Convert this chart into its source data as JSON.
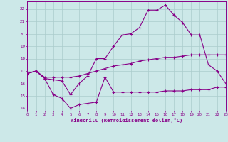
{
  "xlabel": "Windchill (Refroidissement éolien,°C)",
  "background_color": "#cce8e8",
  "grid_color": "#aacccc",
  "line_color": "#880088",
  "xlim": [
    0,
    23
  ],
  "ylim": [
    13.8,
    22.6
  ],
  "xticks": [
    0,
    1,
    2,
    3,
    4,
    5,
    6,
    7,
    8,
    9,
    10,
    11,
    12,
    13,
    14,
    15,
    16,
    17,
    18,
    19,
    20,
    21,
    22,
    23
  ],
  "yticks": [
    14,
    15,
    16,
    17,
    18,
    19,
    20,
    21,
    22
  ],
  "line1_x": [
    0,
    1,
    2,
    3,
    4,
    5,
    6,
    7,
    8,
    9,
    10,
    11,
    12,
    13,
    14,
    15,
    16,
    17,
    18,
    19,
    20,
    21,
    22,
    23
  ],
  "line1_y": [
    16.8,
    17.0,
    16.4,
    15.1,
    14.8,
    14.0,
    14.3,
    14.4,
    14.5,
    16.5,
    15.3,
    15.3,
    15.3,
    15.3,
    15.3,
    15.3,
    15.4,
    15.4,
    15.4,
    15.5,
    15.5,
    15.5,
    15.7,
    15.7
  ],
  "line2_x": [
    0,
    1,
    2,
    3,
    4,
    5,
    6,
    7,
    8,
    9,
    10,
    11,
    12,
    13,
    14,
    15,
    16,
    17,
    18,
    19,
    20,
    21,
    22,
    23
  ],
  "line2_y": [
    16.8,
    17.0,
    16.5,
    16.5,
    16.5,
    16.5,
    16.6,
    16.8,
    17.0,
    17.2,
    17.4,
    17.5,
    17.6,
    17.8,
    17.9,
    18.0,
    18.1,
    18.1,
    18.2,
    18.3,
    18.3,
    18.3,
    18.3,
    18.3
  ],
  "line3_x": [
    0,
    1,
    2,
    3,
    4,
    5,
    6,
    7,
    8,
    9,
    10,
    11,
    12,
    13,
    14,
    15,
    16,
    17,
    18,
    19,
    20,
    21,
    22,
    23
  ],
  "line3_y": [
    16.8,
    17.0,
    16.4,
    16.3,
    16.2,
    15.1,
    16.0,
    16.6,
    18.0,
    18.0,
    19.0,
    19.9,
    20.0,
    20.5,
    21.9,
    21.9,
    22.3,
    21.5,
    20.9,
    19.9,
    19.9,
    17.5,
    17.0,
    16.0
  ]
}
